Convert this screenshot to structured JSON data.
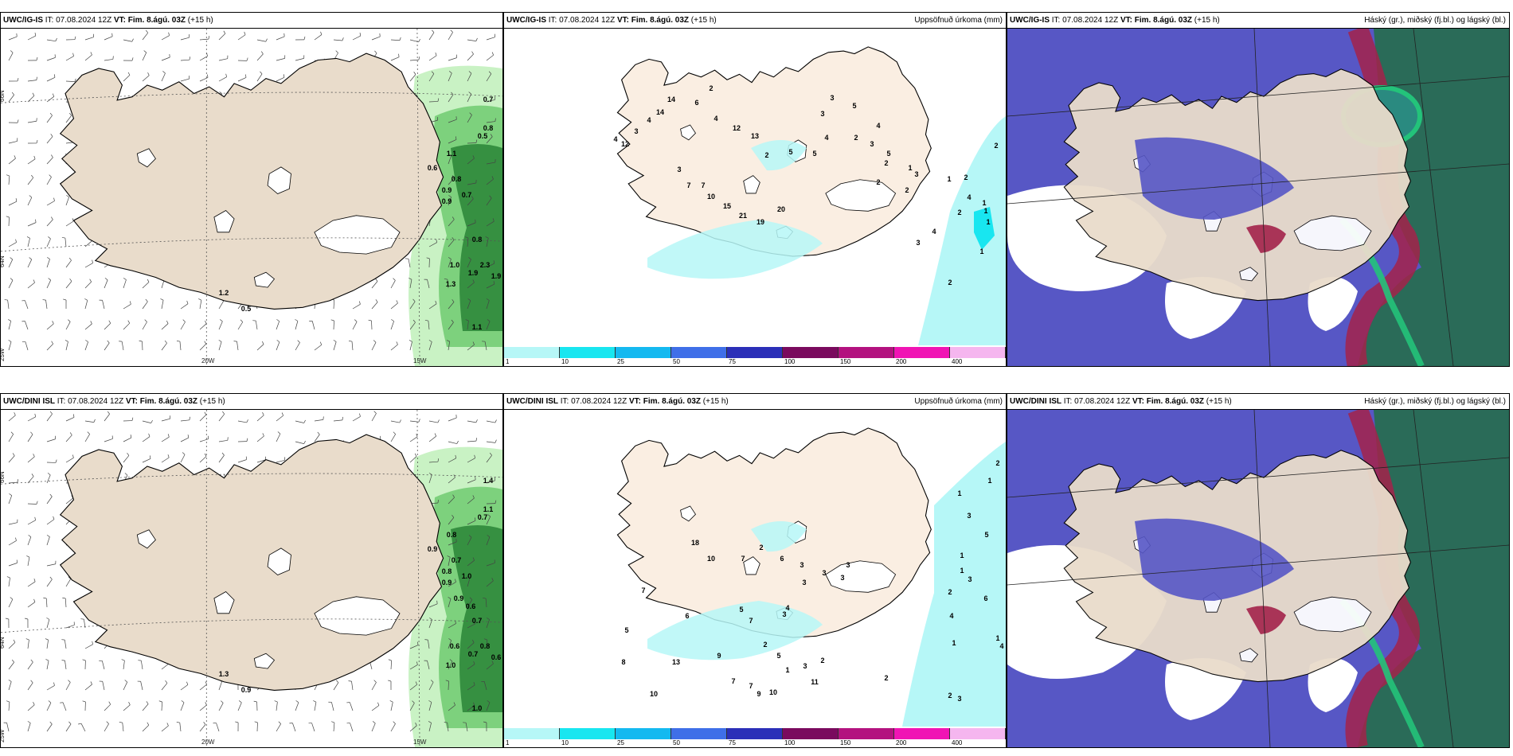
{
  "colors": {
    "land": "#e9dccb",
    "land_light": "#faeee2",
    "ice": "#ffffff",
    "sea": "#ffffff",
    "green_light": "#c9f2c4",
    "green_mid": "#7dd17d",
    "green_dark": "#1f7a2e",
    "cyan": "#b6f7f7",
    "cyan_strong": "#18e6f0",
    "cloud_low": "#5757c5",
    "cloud_high": "#2a6b58",
    "cloud_mid": "#a3224a",
    "cloud_green": "#23c37a"
  },
  "panels": [
    {
      "id": "uwc-igis-wind",
      "model": "UWC/IG-IS",
      "it_label": "IT:",
      "it_value": "07.08.2024 12Z",
      "vt_label": "VT: Fim. 8.ágú. 03Z",
      "lead": "(+15 h)",
      "title_right": ""
    },
    {
      "id": "uwc-igis-precip",
      "model": "UWC/IG-IS",
      "it_label": "IT:",
      "it_value": "07.08.2024 12Z",
      "vt_label": "VT: Fim. 8.ágú. 03Z",
      "lead": "(+15 h)",
      "title_right": "Uppsöfnuð úrkoma (mm)"
    },
    {
      "id": "uwc-igis-cloud",
      "model": "UWC/IG-IS",
      "it_label": "IT:",
      "it_value": "07.08.2024 12Z",
      "vt_label": "VT: Fim. 8.ágú. 03Z",
      "lead": "(+15 h)",
      "title_right": "Háský (gr.), miðský (fj.bl.) og lágský (bl.)"
    },
    {
      "id": "uwc-dini-wind",
      "model": "UWC/DINI ISL",
      "it_label": "IT:",
      "it_value": "07.08.2024 12Z",
      "vt_label": "VT: Fim. 8.ágú. 03Z",
      "lead": "(+15 h)",
      "title_right": ""
    },
    {
      "id": "uwc-dini-precip",
      "model": "UWC/DINI ISL",
      "it_label": "IT:",
      "it_value": "07.08.2024 12Z",
      "vt_label": "VT: Fim. 8.ágú. 03Z",
      "lead": "(+15 h)",
      "title_right": "Uppsöfnuð úrkoma (mm)"
    },
    {
      "id": "uwc-dini-cloud",
      "model": "UWC/DINI ISL",
      "it_label": "IT:",
      "it_value": "07.08.2024 12Z",
      "vt_label": "VT: Fim. 8.ágú. 03Z",
      "lead": "(+15 h)",
      "title_right": "Háský (gr.), miðský (fj.bl.) og lágský (bl.)"
    }
  ],
  "axis_labels": {
    "lat_66": "66N",
    "lat_64": "64N",
    "lon_25": "25W",
    "lon_20": "20W",
    "lon_15": "15W"
  },
  "colorbar": {
    "ticks": [
      "1",
      "10",
      "25",
      "50",
      "75",
      "100",
      "150",
      "200",
      "400"
    ],
    "colors": [
      "#b6f7f7",
      "#18e6f0",
      "#14b9f0",
      "#3f6fe8",
      "#2b2fb8",
      "#7a0a5e",
      "#b3127f",
      "#f014b4",
      "#f5b6ef"
    ]
  },
  "wind_top_values": [
    "0.7",
    "0.8",
    "0.5",
    "0.6",
    "1.1",
    "0.8",
    "0.9",
    "0.7",
    "0.9",
    "0.8",
    "1.0",
    "1.9",
    "2.3",
    "1.9",
    "1.3",
    "1.1",
    "1.2",
    "0.5"
  ],
  "wind_bottom_values": [
    "1.4",
    "1.1",
    "0.7",
    "0.9",
    "0.8",
    "0.7",
    "0.8",
    "1.0",
    "0.9",
    "0.7",
    "0.6",
    "0.7",
    "0.8",
    "0.6",
    "1.0",
    "1.0",
    "1.3",
    "0.9",
    "0.9",
    "0.6"
  ],
  "precip_top_values": [
    "2",
    "2",
    "1",
    "1",
    "1",
    "1",
    "1",
    "2",
    "2",
    "4",
    "4",
    "3",
    "2",
    "2",
    "2",
    "1",
    "3",
    "5",
    "3",
    "2",
    "4",
    "5",
    "3",
    "3",
    "4",
    "5",
    "5",
    "2",
    "13",
    "12",
    "4",
    "2",
    "6",
    "14",
    "14",
    "4",
    "3",
    "12",
    "4",
    "3",
    "7",
    "7",
    "10",
    "15",
    "21",
    "19",
    "20"
  ],
  "precip_bottom_values": [
    "2",
    "1",
    "1",
    "3",
    "5",
    "1",
    "1",
    "3",
    "6",
    "2",
    "4",
    "1",
    "1",
    "4",
    "2",
    "3",
    "2",
    "3",
    "2",
    "3",
    "3",
    "4",
    "5",
    "6",
    "7",
    "7",
    "5",
    "8",
    "9",
    "7",
    "7",
    "5",
    "1",
    "3",
    "2",
    "11",
    "10",
    "9",
    "13",
    "10",
    "18",
    "10",
    "7",
    "2",
    "6",
    "3",
    "3",
    "3"
  ]
}
